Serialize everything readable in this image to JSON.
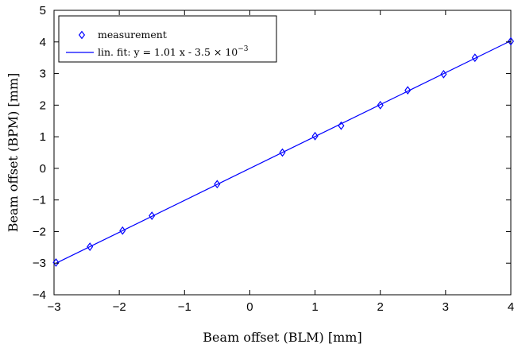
{
  "chart_data": {
    "type": "scatter",
    "xlabel": "Beam offset (BLM) [mm]",
    "ylabel": "Beam offset (BPM) [mm]",
    "xlim": [
      -3,
      4
    ],
    "ylim": [
      -4,
      5
    ],
    "xticks": [
      -3,
      -2,
      -1,
      0,
      1,
      2,
      3,
      4
    ],
    "yticks": [
      -4,
      -3,
      -2,
      -1,
      0,
      1,
      2,
      3,
      4,
      5
    ],
    "grid": false,
    "legend_position": "top-left",
    "colors": {
      "series": "#0000ff",
      "axis": "#000000"
    },
    "series": [
      {
        "name": "measurement",
        "kind": "markers",
        "marker": "diamond",
        "points": [
          [
            -2.97,
            -2.98
          ],
          [
            -2.45,
            -2.48
          ],
          [
            -1.95,
            -1.97
          ],
          [
            -1.5,
            -1.5
          ],
          [
            -0.5,
            -0.5
          ],
          [
            0.5,
            0.5
          ],
          [
            1.0,
            1.02
          ],
          [
            1.4,
            1.35
          ],
          [
            2.0,
            2.0
          ],
          [
            2.42,
            2.47
          ],
          [
            2.97,
            2.98
          ],
          [
            3.45,
            3.5
          ],
          [
            4.0,
            4.02
          ]
        ]
      },
      {
        "name": "lin. fit: y = 1.01 x - 3.5 × 10",
        "name_exponent": "−3",
        "kind": "line",
        "slope": 1.01,
        "intercept": -0.0035
      }
    ]
  }
}
